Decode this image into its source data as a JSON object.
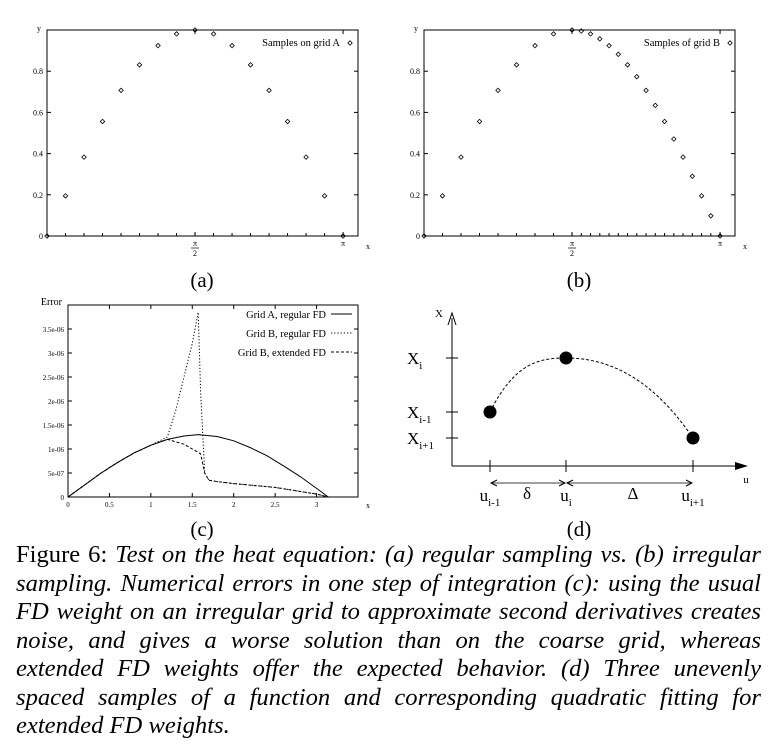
{
  "chart_data": [
    {
      "id": "a",
      "type": "scatter",
      "ylabel": "y",
      "xlabel": "x",
      "xlim": [
        0,
        3.3
      ],
      "ylim": [
        0,
        1
      ],
      "xticks": [
        {
          "v": 1.5708,
          "label": "π/2"
        },
        {
          "v": 3.1416,
          "label": "π"
        }
      ],
      "yticks": [
        0,
        0.2,
        0.4,
        0.6,
        0.8
      ],
      "legend": "Samples on grid A",
      "legend_position": "top-right",
      "series": [
        {
          "name": "Samples on grid A",
          "marker": "diamond",
          "x": [
            0,
            0.1963,
            0.3927,
            0.589,
            0.7854,
            0.9817,
            1.1781,
            1.3744,
            1.5708,
            1.7671,
            1.9635,
            2.1598,
            2.3562,
            2.5525,
            2.7489,
            2.9452,
            3.1416
          ],
          "values": [
            0,
            0.195,
            0.383,
            0.556,
            0.707,
            0.831,
            0.924,
            0.981,
            1.0,
            0.981,
            0.924,
            0.831,
            0.707,
            0.556,
            0.383,
            0.195,
            0
          ]
        }
      ]
    },
    {
      "id": "b",
      "type": "scatter",
      "ylabel": "y",
      "xlabel": "x",
      "xlim": [
        0,
        3.3
      ],
      "ylim": [
        0,
        1
      ],
      "xticks": [
        {
          "v": 1.5708,
          "label": "π/2"
        },
        {
          "v": 3.1416,
          "label": "π"
        }
      ],
      "yticks": [
        0,
        0.2,
        0.4,
        0.6,
        0.8
      ],
      "legend": "Samples of grid B",
      "legend_position": "top-right",
      "series": [
        {
          "name": "Samples of grid B",
          "marker": "diamond",
          "x": [
            0,
            0.1963,
            0.3927,
            0.589,
            0.7854,
            0.9817,
            1.1781,
            1.3744,
            1.5708,
            1.669,
            1.7671,
            1.8653,
            1.9635,
            2.0617,
            2.1598,
            2.258,
            2.3562,
            2.4544,
            2.5525,
            2.6507,
            2.7489,
            2.8471,
            2.9452,
            3.0434,
            3.1416
          ],
          "values": [
            0,
            0.195,
            0.383,
            0.556,
            0.707,
            0.831,
            0.924,
            0.981,
            1.0,
            0.995,
            0.981,
            0.957,
            0.924,
            0.882,
            0.831,
            0.773,
            0.707,
            0.634,
            0.556,
            0.471,
            0.383,
            0.29,
            0.195,
            0.098,
            0
          ]
        }
      ]
    },
    {
      "id": "c",
      "type": "line",
      "ylabel": "Error",
      "xlabel": "x",
      "xlim": [
        0,
        3.5
      ],
      "ylim": [
        0,
        4e-06
      ],
      "xticks": [
        0,
        0.5,
        1,
        1.5,
        2,
        2.5,
        3
      ],
      "xtick_labels": [
        "0",
        "0.5",
        "1",
        "1.5",
        "2",
        "2.5",
        "3"
      ],
      "yticks": [
        0,
        5e-07,
        1e-06,
        1.5e-06,
        2e-06,
        2.5e-06,
        3e-06,
        3.5e-06
      ],
      "ytick_labels": [
        "0",
        "5e-07",
        "1e-06",
        "1.5e-06",
        "2e-06",
        "2.5e-06",
        "3e-06",
        "3.5e-06"
      ],
      "legend_position": "top-right",
      "series": [
        {
          "name": "Grid A, regular FD",
          "style": "solid",
          "x": [
            0,
            0.2,
            0.4,
            0.6,
            0.8,
            1.0,
            1.2,
            1.4,
            1.571,
            1.8,
            2.0,
            2.2,
            2.4,
            2.6,
            2.8,
            3.0,
            3.1416
          ],
          "values": [
            0,
            2.5e-07,
            5e-07,
            7.2e-07,
            9.2e-07,
            1.08e-06,
            1.2e-06,
            1.27e-06,
            1.3e-06,
            1.26e-06,
            1.17e-06,
            1.03e-06,
            8.6e-07,
            6.5e-07,
            4.3e-07,
            1.8e-07,
            0
          ]
        },
        {
          "name": "Grid B, regular FD",
          "style": "dotted",
          "x": [
            0,
            0.2,
            0.4,
            0.6,
            0.8,
            1.0,
            1.2,
            1.3,
            1.4,
            1.5,
            1.571,
            1.6,
            1.65,
            1.7,
            1.8,
            2.0,
            2.5,
            3.0,
            3.1416
          ],
          "values": [
            0,
            2.5e-07,
            5e-07,
            7.2e-07,
            9.2e-07,
            1.08e-06,
            1.25e-06,
            1.8e-06,
            2.5e-06,
            3.2e-06,
            3.85e-06,
            2.2e-06,
            5e-07,
            3.5e-07,
            3.2e-07,
            2.8e-07,
            2e-07,
            6e-08,
            0
          ]
        },
        {
          "name": "Grid B, extended FD",
          "style": "dashed",
          "x": [
            0,
            0.2,
            0.4,
            0.6,
            0.8,
            1.0,
            1.2,
            1.4,
            1.5,
            1.6,
            1.65,
            1.7,
            1.8,
            2.0,
            2.5,
            3.0,
            3.1416
          ],
          "values": [
            0,
            2.5e-07,
            5e-07,
            7.2e-07,
            9.2e-07,
            1.08e-06,
            1.2e-06,
            1.1e-06,
            1e-06,
            9e-07,
            5e-07,
            3.5e-07,
            3.2e-07,
            2.8e-07,
            2e-07,
            6e-08,
            0
          ]
        }
      ]
    }
  ],
  "diagram_d": {
    "x_axis_label": "u",
    "y_axis_label": "X",
    "y_labels": [
      {
        "main": "X",
        "sub": "i"
      },
      {
        "main": "X",
        "sub": "i-1"
      },
      {
        "main": "X",
        "sub": "i+1"
      }
    ],
    "x_labels": [
      {
        "main": "u",
        "sub": "i-1"
      },
      {
        "main": "u",
        "sub": "i"
      },
      {
        "main": "u",
        "sub": "i+1"
      }
    ],
    "spacing_labels": [
      "δ",
      "Δ"
    ]
  },
  "subfig_labels": [
    "(a)",
    "(b)",
    "(c)",
    "(d)"
  ],
  "caption": {
    "prefix": "Figure 6: ",
    "body": "Test on the heat equation: (a) regular sampling vs. (b) irregular sampling. Numerical errors in one step of integration (c): using the usual FD weight on an irregular grid to approximate second derivatives creates noise, and gives a worse solution than on the coarse grid, whereas extended FD weights offer the expected behavior. (d) Three unevenly spaced samples of a function and corresponding quadratic fitting for extended FD weights."
  }
}
